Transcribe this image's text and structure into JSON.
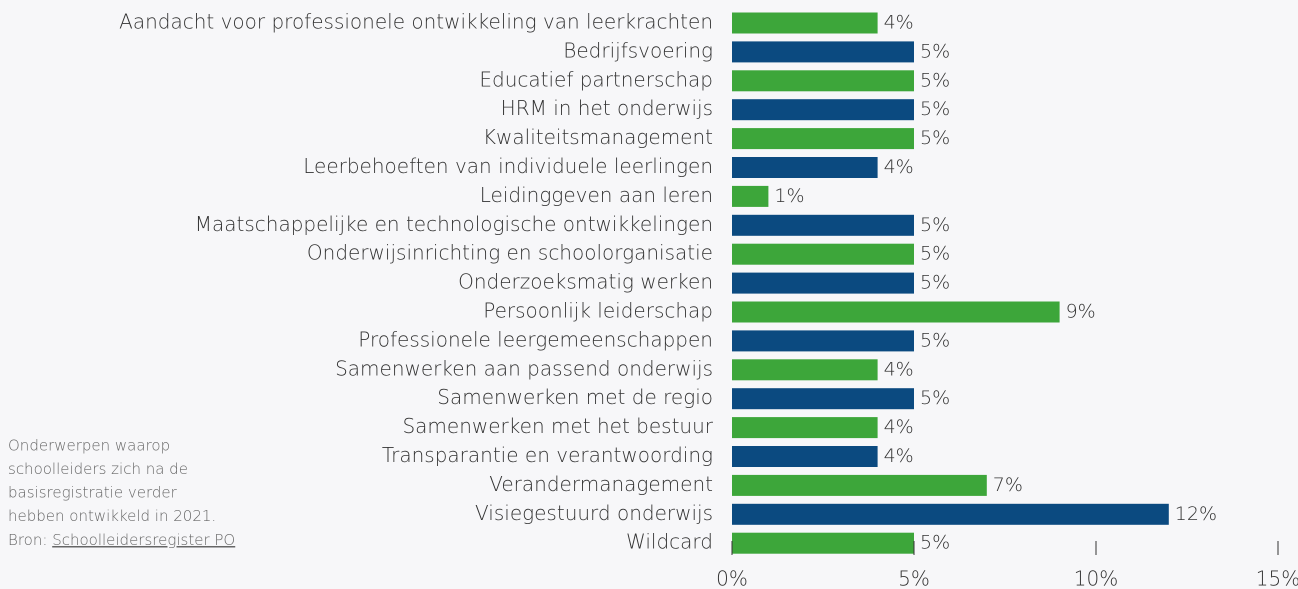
{
  "chart_data": {
    "type": "barh",
    "categories": [
      "Aandacht voor professionele ontwikkeling van leerkrachten",
      "Bedrijfsvoering",
      "Educatief partnerschap",
      "HRM in het onderwijs",
      "Kwaliteitsmanagement",
      "Leerbehoeften van individuele leerlingen",
      "Leidinggeven aan leren",
      "Maatschappelijke en technologische ontwikkelingen",
      "Onderwijsinrichting en schoolorganisatie",
      "Onderzoeksmatig werken",
      "Persoonlijk leiderschap",
      "Professionele leergemeenschappen",
      "Samenwerken aan passend onderwijs",
      "Samenwerken met de regio",
      "Samenwerken met het bestuur",
      "Transparantie en verantwoording",
      "Verandermanagement",
      "Visiegestuurd onderwijs",
      "Wildcard"
    ],
    "values": [
      4,
      5,
      5,
      5,
      5,
      4,
      1,
      5,
      5,
      5,
      9,
      5,
      4,
      5,
      4,
      4,
      7,
      12,
      5
    ],
    "value_labels": [
      "4%",
      "5%",
      "5%",
      "5%",
      "5%",
      "4%",
      "1%",
      "5%",
      "5%",
      "5%",
      "9%",
      "5%",
      "4%",
      "5%",
      "4%",
      "4%",
      "7%",
      "12%",
      "5%"
    ],
    "colors": [
      "#3da63a",
      "#0b4a80"
    ],
    "xlim": [
      0,
      15
    ],
    "xticks": [
      {
        "value": 0,
        "label": "0%"
      },
      {
        "value": 5,
        "label": "5%"
      },
      {
        "value": 10,
        "label": "10%"
      },
      {
        "value": 15,
        "label": "15%"
      }
    ],
    "note": [
      "Onderwerpen waarop",
      "schoolleiders zich na de",
      "basisregistratie verder",
      "hebben ontwikkeld in 2021."
    ],
    "source_prefix": "Bron:",
    "source": "Schoolleidersregister PO"
  }
}
